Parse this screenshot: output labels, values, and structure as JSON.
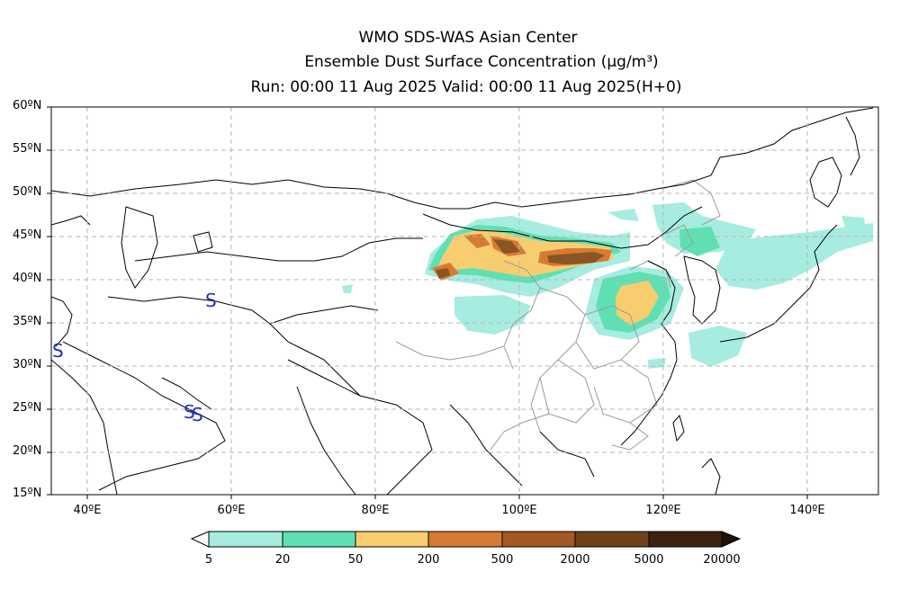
{
  "title": {
    "line1": "WMO SDS-WAS Asian Center",
    "line2": "Ensemble Dust Surface Concentration (μg/m³)",
    "line3": "Run: 00:00 11 Aug 2025    Valid: 00:00 11 Aug 2025(H+0)"
  },
  "axes": {
    "lat_labels": [
      "60ºN",
      "55ºN",
      "50ºN",
      "45ºN",
      "40ºN",
      "35ºN",
      "30ºN",
      "25ºN",
      "20ºN",
      "15ºN"
    ],
    "lon_labels": [
      "40ºE",
      "60ºE",
      "80ºE",
      "100ºE",
      "120ºE",
      "140ºE"
    ],
    "lat_range": [
      15,
      60
    ],
    "lon_range": [
      35,
      150
    ],
    "grid": "dashed"
  },
  "colorbar": {
    "labels": [
      "5",
      "20",
      "50",
      "200",
      "500",
      "2000",
      "5000",
      "20000"
    ],
    "colors": [
      "#a6ece0",
      "#5ee0b3",
      "#f7cd6f",
      "#d67a34",
      "#a35a22",
      "#6e4218",
      "#3a2410"
    ]
  },
  "markers": {
    "symbol": "S",
    "color": "#1f2fb5"
  }
}
